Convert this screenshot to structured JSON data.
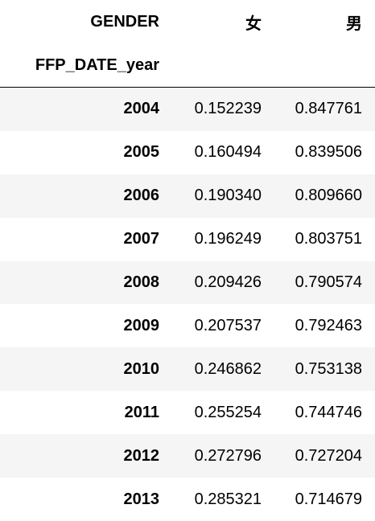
{
  "table": {
    "columns_name": "GENDER",
    "columns": [
      "女",
      "男"
    ],
    "index_name": "FFP_DATE_year",
    "rows": [
      [
        "2004",
        "0.152239",
        "0.847761"
      ],
      [
        "2005",
        "0.160494",
        "0.839506"
      ],
      [
        "2006",
        "0.190340",
        "0.809660"
      ],
      [
        "2007",
        "0.196249",
        "0.803751"
      ],
      [
        "2008",
        "0.209426",
        "0.790574"
      ],
      [
        "2009",
        "0.207537",
        "0.792463"
      ],
      [
        "2010",
        "0.246862",
        "0.753138"
      ],
      [
        "2011",
        "0.255254",
        "0.744746"
      ],
      [
        "2012",
        "0.272796",
        "0.727204"
      ],
      [
        "2013",
        "0.285321",
        "0.714679"
      ]
    ]
  }
}
